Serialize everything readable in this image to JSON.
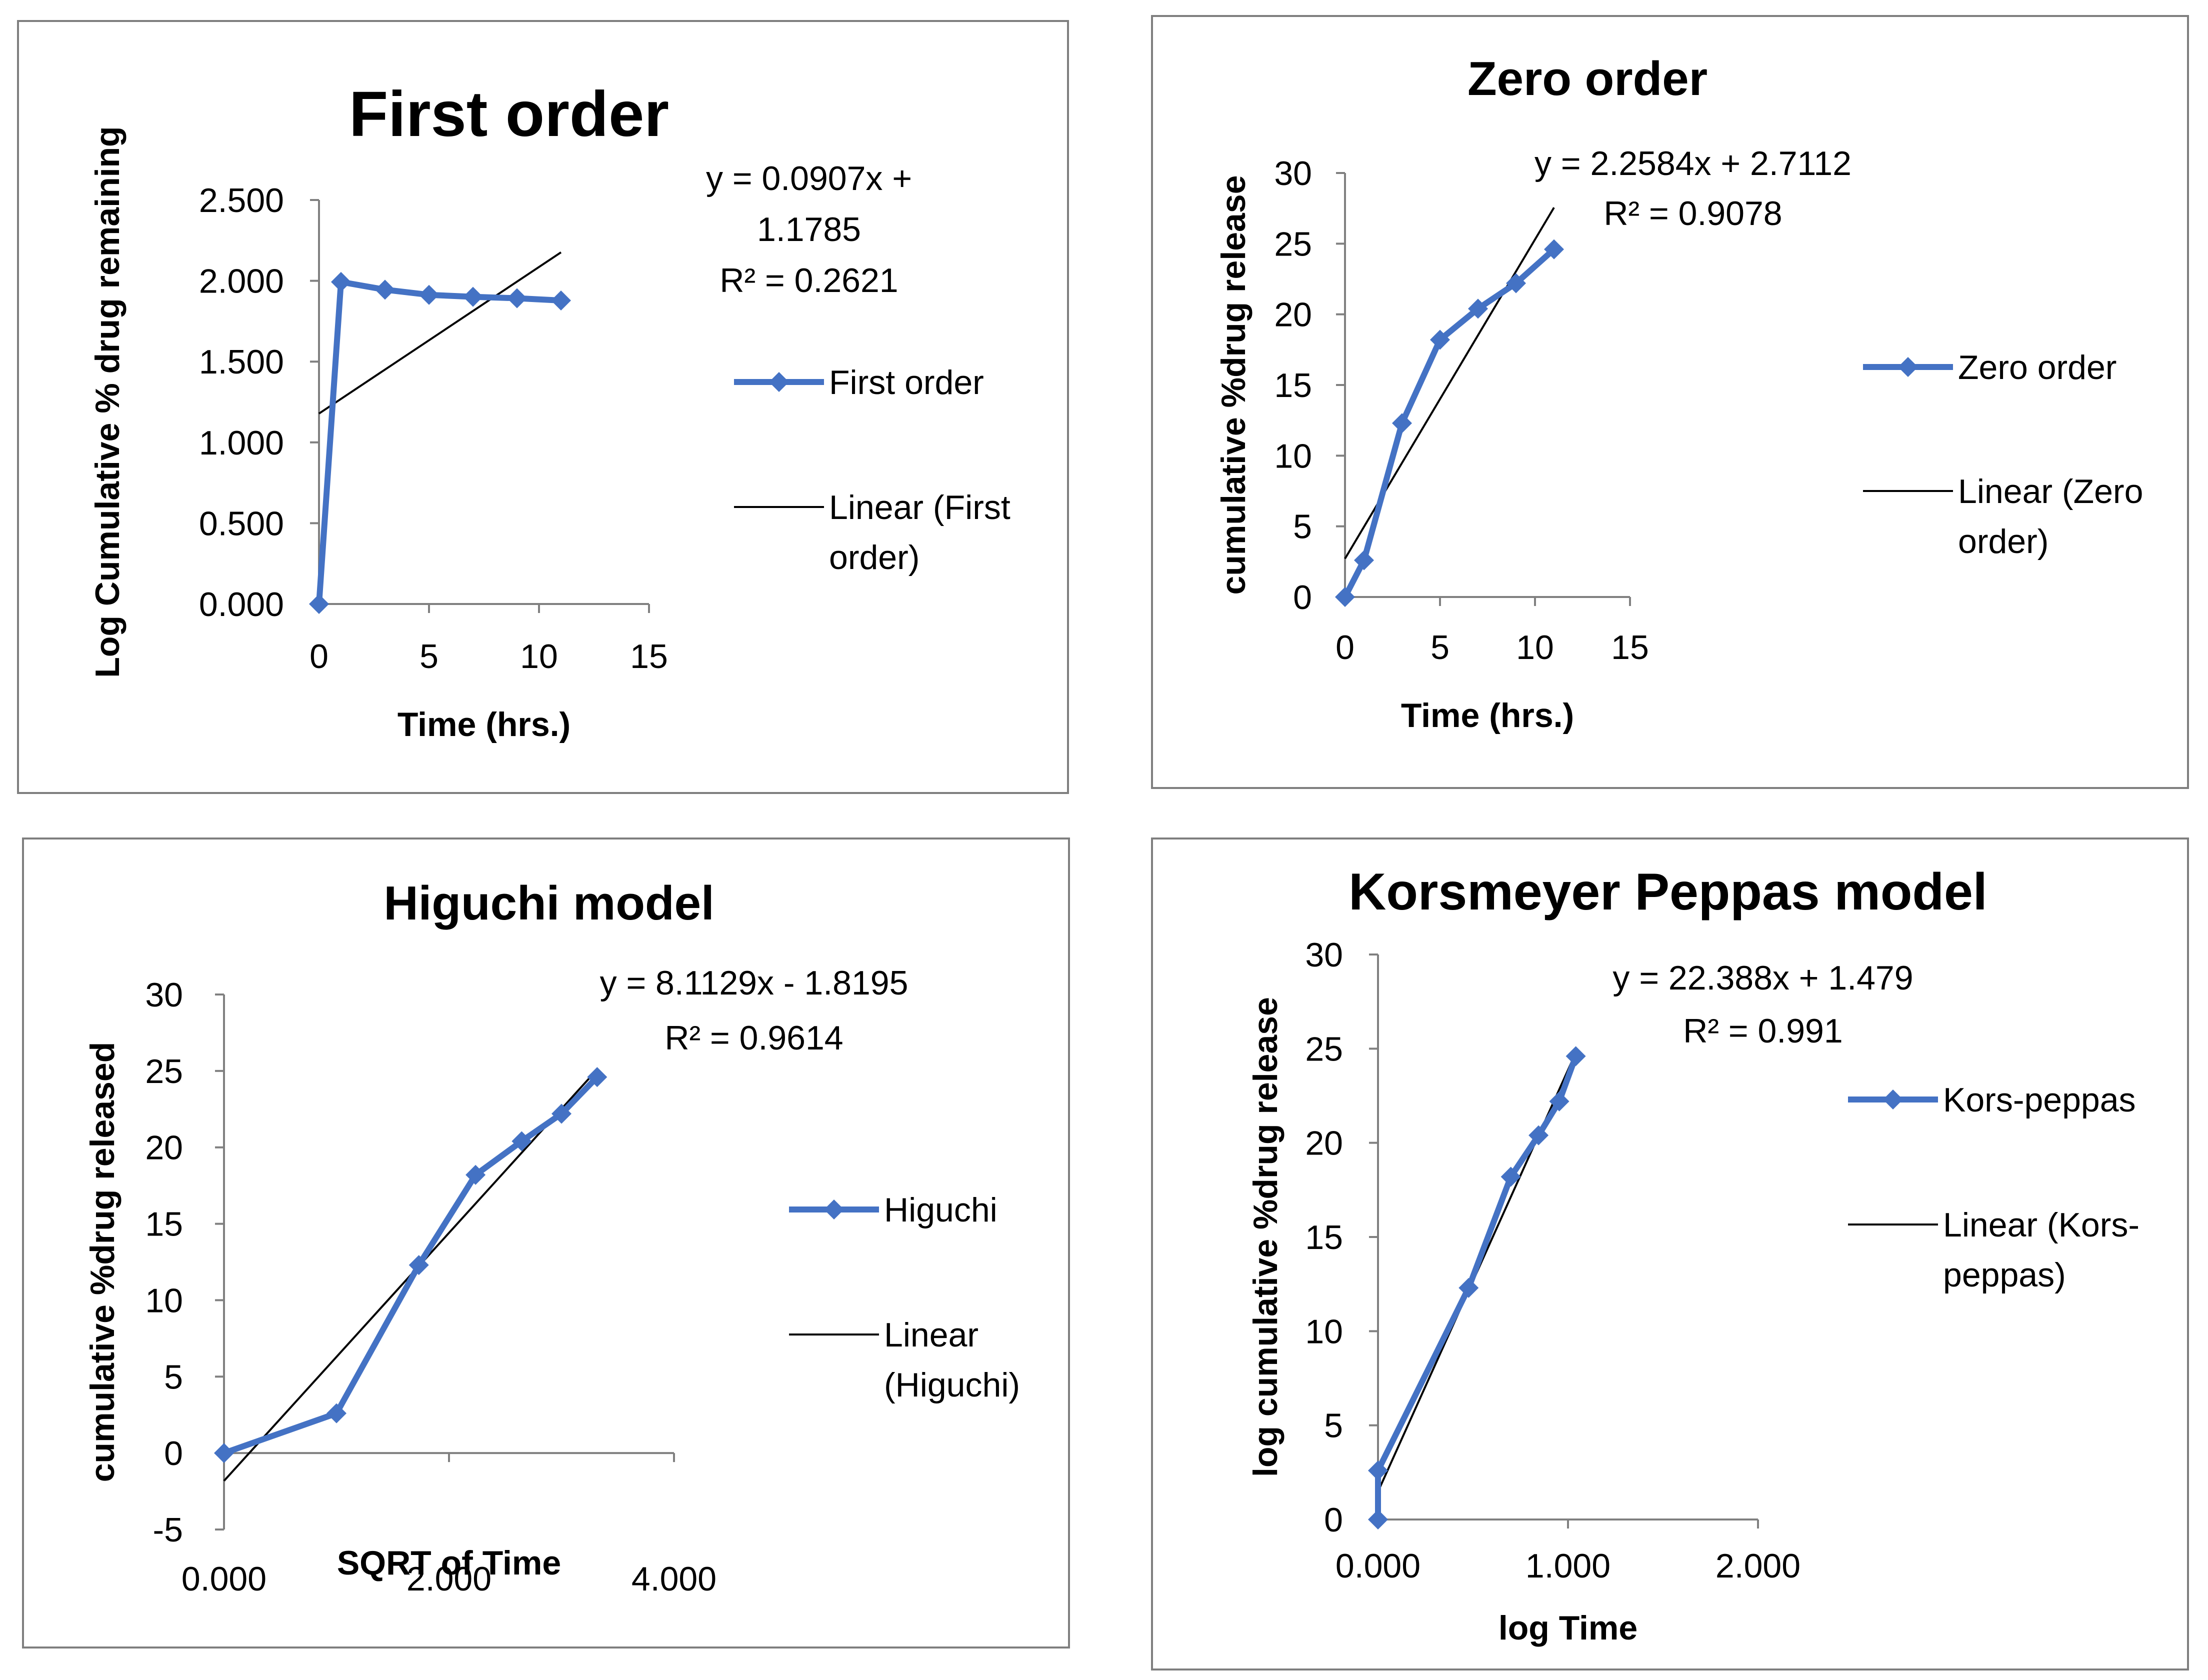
{
  "colors": {
    "series": "#4472C4",
    "trend": "#000000",
    "axis": "#808080",
    "border": "#7f7f7f"
  },
  "marker_icon": "diamond-marker",
  "chart_data": [
    {
      "type": "line",
      "title": "First order",
      "xlabel": "Time (hrs.)",
      "ylabel": "Log Cumulative % drug remaining",
      "xlim": [
        0,
        15
      ],
      "ylim": [
        0,
        2.5
      ],
      "xticks": [
        "0",
        "5",
        "10",
        "15"
      ],
      "yticks": [
        "0.000",
        "0.500",
        "1.000",
        "1.500",
        "2.000",
        "2.500"
      ],
      "series": [
        {
          "name": "First order",
          "x": [
            0,
            1,
            3,
            5,
            7,
            9,
            11
          ],
          "y": [
            0.0,
            1.993,
            1.945,
            1.913,
            1.901,
            1.892,
            1.878
          ]
        }
      ],
      "trendline": {
        "name": "Linear (First order)",
        "slope": 0.0907,
        "intercept": 1.1785,
        "x_range": [
          0,
          11
        ]
      },
      "equation": [
        "y = 0.0907x +",
        "1.1785",
        "R² = 0.2621"
      ],
      "legend": {
        "series_label": [
          "First order"
        ],
        "trend_label": [
          "Linear (First",
          "order)"
        ]
      }
    },
    {
      "type": "line",
      "title": "Zero order",
      "xlabel": "Time (hrs.)",
      "ylabel": "cumulative %drug release",
      "xlim": [
        0,
        15
      ],
      "ylim": [
        0,
        30
      ],
      "xticks": [
        "0",
        "5",
        "10",
        "15"
      ],
      "yticks": [
        "0",
        "5",
        "10",
        "15",
        "20",
        "25",
        "30"
      ],
      "series": [
        {
          "name": "Zero order",
          "x": [
            0,
            1,
            3,
            5,
            7,
            9,
            11
          ],
          "y": [
            0,
            2.6,
            12.3,
            18.2,
            20.4,
            22.2,
            24.6
          ]
        }
      ],
      "trendline": {
        "name": "Linear (Zero order)",
        "slope": 2.2584,
        "intercept": 2.7112,
        "x_range": [
          0,
          11
        ]
      },
      "equation": [
        "y = 2.2584x + 2.7112",
        "R² = 0.9078"
      ],
      "legend": {
        "series_label": [
          "Zero order"
        ],
        "trend_label": [
          "Linear (Zero",
          "order)"
        ]
      }
    },
    {
      "type": "line",
      "title": "Higuchi model",
      "xlabel": "SQRT of Time",
      "ylabel": "cumulative %drug released",
      "xlim": [
        0,
        4
      ],
      "ylim": [
        -5,
        30
      ],
      "xticks": [
        "0.000",
        "2.000",
        "4.000"
      ],
      "yticks": [
        "-5",
        "0",
        "5",
        "10",
        "15",
        "20",
        "25",
        "30"
      ],
      "series": [
        {
          "name": "Higuchi",
          "x": [
            0,
            1,
            1.732,
            2.236,
            2.646,
            3,
            3.317
          ],
          "y": [
            0,
            2.6,
            12.3,
            18.2,
            20.4,
            22.2,
            24.6
          ]
        }
      ],
      "trendline": {
        "name": "Linear (Higuchi)",
        "slope": 8.1129,
        "intercept": -1.8195,
        "x_range": [
          0,
          3.317
        ]
      },
      "equation": [
        "y = 8.1129x - 1.8195",
        "R² = 0.9614"
      ],
      "legend": {
        "series_label": [
          "Higuchi"
        ],
        "trend_label": [
          "Linear",
          "(Higuchi)"
        ]
      }
    },
    {
      "type": "line",
      "title": "Korsmeyer Peppas model",
      "xlabel": "log Time",
      "ylabel": "log cumulative %drug release",
      "xlim": [
        0,
        2
      ],
      "ylim": [
        0,
        30
      ],
      "xticks": [
        "0.000",
        "1.000",
        "2.000"
      ],
      "yticks": [
        "0",
        "5",
        "10",
        "15",
        "20",
        "25",
        "30"
      ],
      "series": [
        {
          "name": "Kors-peppas",
          "x": [
            0,
            0,
            0.477,
            0.699,
            0.845,
            0.954,
            1.041
          ],
          "y": [
            0,
            2.6,
            12.3,
            18.2,
            20.4,
            22.2,
            24.6
          ]
        }
      ],
      "trendline": {
        "name": "Linear (Kors-peppas)",
        "slope": 22.388,
        "intercept": 1.479,
        "x_range": [
          0,
          1.041
        ]
      },
      "equation": [
        "y = 22.388x + 1.479",
        "R² = 0.991"
      ],
      "legend": {
        "series_label": [
          "Kors-peppas"
        ],
        "trend_label": [
          "Linear (Kors-",
          "peppas)"
        ]
      }
    }
  ]
}
